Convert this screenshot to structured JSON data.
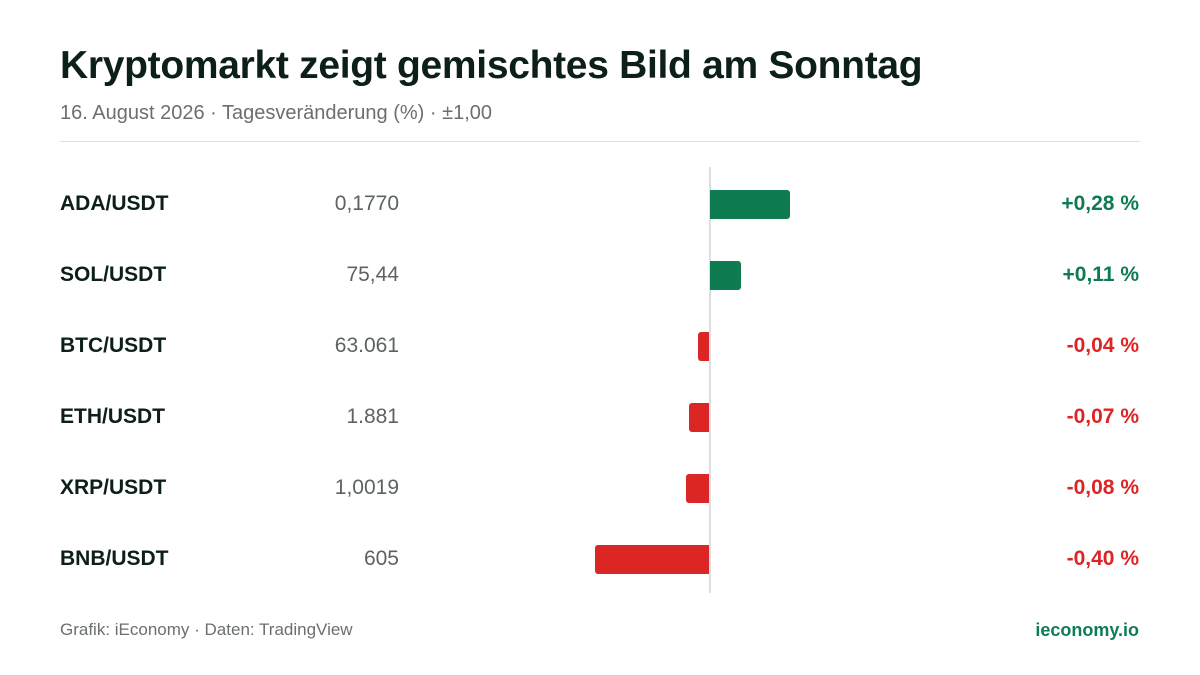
{
  "title": "Kryptomarkt zeigt gemischtes Bild am Sonntag",
  "subtitle": "16. August 2026 · Tagesveränderung (%) · ±1,00",
  "footer": {
    "source": "Grafik: iEconomy · Daten: TradingView",
    "brand": "ieconomy.io"
  },
  "colors": {
    "positive": "#0e7c50",
    "negative": "#dc2626",
    "brand": "#0e7c5a"
  },
  "chart_data": {
    "type": "bar",
    "orientation": "horizontal",
    "xlim": [
      -1.0,
      1.0
    ],
    "categories": [
      "ADA/USDT",
      "SOL/USDT",
      "BTC/USDT",
      "ETH/USDT",
      "XRP/USDT",
      "BNB/USDT"
    ],
    "values": [
      0.28,
      0.11,
      -0.04,
      -0.07,
      -0.08,
      -0.4
    ],
    "rows": [
      {
        "pair": "ADA/USDT",
        "price": "0,1770",
        "change": 0.28,
        "change_label": "+0,28 %"
      },
      {
        "pair": "SOL/USDT",
        "price": "75,44",
        "change": 0.11,
        "change_label": "+0,11 %"
      },
      {
        "pair": "BTC/USDT",
        "price": "63.061",
        "change": -0.04,
        "change_label": "-0,04 %"
      },
      {
        "pair": "ETH/USDT",
        "price": "1.881",
        "change": -0.07,
        "change_label": "-0,07 %"
      },
      {
        "pair": "XRP/USDT",
        "price": "1,0019",
        "change": -0.08,
        "change_label": "-0,08 %"
      },
      {
        "pair": "BNB/USDT",
        "price": "605",
        "change": -0.4,
        "change_label": "-0,40 %"
      }
    ]
  }
}
